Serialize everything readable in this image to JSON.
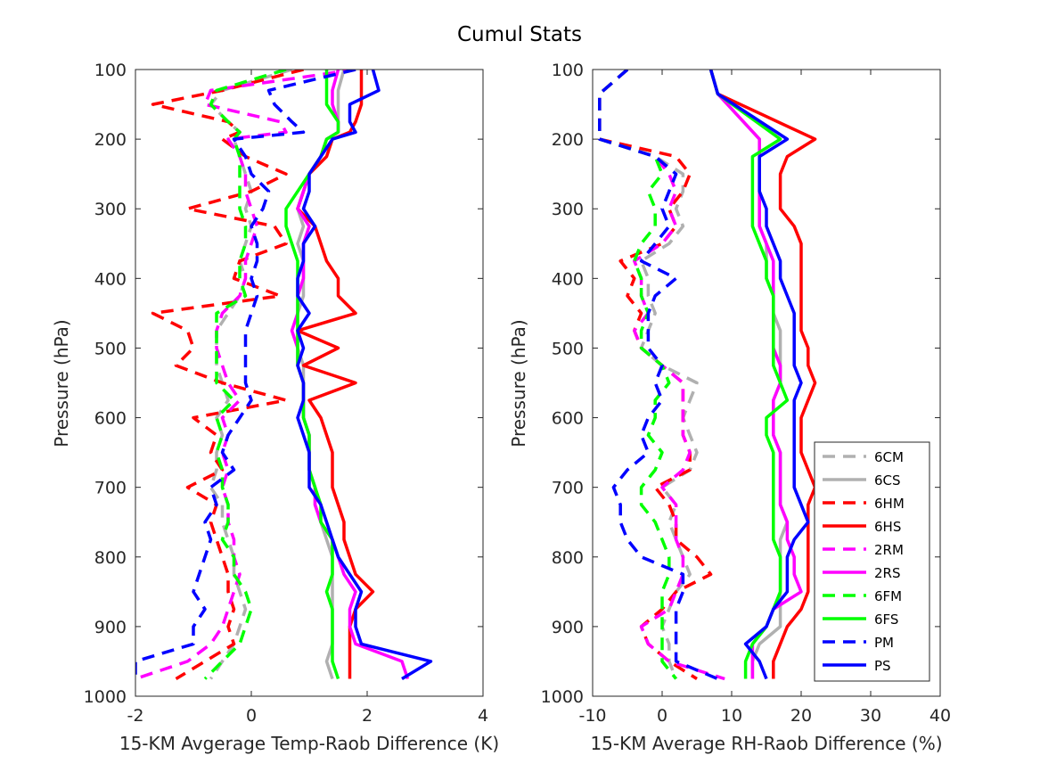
{
  "figure_title": "Cumul Stats",
  "colors": {
    "6C": "#b0b0b0",
    "6H": "#ff0000",
    "2R": "#ff00ff",
    "6F": "#00ff00",
    "P": "#0000ff"
  },
  "legend": {
    "placement": "bottom-right of right panel",
    "entries": [
      {
        "label": "6CM",
        "color": "#b0b0b0",
        "dashed": true
      },
      {
        "label": "6CS",
        "color": "#b0b0b0",
        "dashed": false
      },
      {
        "label": "6HM",
        "color": "#ff0000",
        "dashed": true
      },
      {
        "label": "6HS",
        "color": "#ff0000",
        "dashed": false
      },
      {
        "label": "2RM",
        "color": "#ff00ff",
        "dashed": true
      },
      {
        "label": "2RS",
        "color": "#ff00ff",
        "dashed": false
      },
      {
        "label": "6FM",
        "color": "#00ff00",
        "dashed": true
      },
      {
        "label": "6FS",
        "color": "#00ff00",
        "dashed": false
      },
      {
        "label": "PM",
        "color": "#0000ff",
        "dashed": true
      },
      {
        "label": "PS",
        "color": "#0000ff",
        "dashed": false
      }
    ]
  },
  "chart_data": [
    {
      "type": "line",
      "xlabel": "15-KM Avgerage Temp-Raob Difference (K)",
      "ylabel": "Pressure (hPa)",
      "xlim": [
        -2,
        4
      ],
      "ylim": [
        100,
        1000
      ],
      "y_reversed": true,
      "xticks": [
        "-2",
        "0",
        "2",
        "4"
      ],
      "yticks": [
        "100",
        "200",
        "300",
        "400",
        "500",
        "600",
        "700",
        "800",
        "900",
        "1000"
      ],
      "pressure": [
        100,
        130,
        150,
        175,
        190,
        200,
        225,
        250,
        275,
        300,
        325,
        350,
        375,
        400,
        425,
        450,
        475,
        500,
        525,
        550,
        575,
        600,
        625,
        650,
        675,
        700,
        725,
        750,
        775,
        800,
        825,
        850,
        875,
        900,
        925,
        950,
        975
      ],
      "series": [
        {
          "name": "6CM",
          "dashed": true,
          "color": "#b0b0b0",
          "values": [
            0.7,
            -0.5,
            -0.7,
            -0.4,
            -0.2,
            -0.3,
            -0.2,
            -0.1,
            0.0,
            -0.1,
            0.0,
            -0.1,
            -0.2,
            -0.1,
            -0.2,
            -0.4,
            -0.6,
            -0.6,
            -0.6,
            -0.5,
            -0.4,
            -0.6,
            -0.5,
            -0.6,
            -0.6,
            -0.7,
            -0.5,
            -0.5,
            -0.4,
            -0.3,
            -0.3,
            -0.2,
            -0.1,
            -0.2,
            -0.3,
            -0.5,
            -0.7
          ]
        },
        {
          "name": "6CS",
          "dashed": false,
          "color": "#b0b0b0",
          "values": [
            1.6,
            1.5,
            1.5,
            1.5,
            1.5,
            1.3,
            1.2,
            1.0,
            0.9,
            0.8,
            0.9,
            0.8,
            0.9,
            0.9,
            0.9,
            0.8,
            0.8,
            0.8,
            0.9,
            0.9,
            0.9,
            0.9,
            1.0,
            1.0,
            1.0,
            1.1,
            1.1,
            1.2,
            1.3,
            1.4,
            1.4,
            1.4,
            1.4,
            1.4,
            1.4,
            1.3,
            1.4
          ]
        },
        {
          "name": "6HM",
          "dashed": true,
          "color": "#ff0000",
          "values": [
            0.9,
            -0.5,
            -1.7,
            -0.4,
            -0.2,
            -0.5,
            -0.1,
            0.6,
            0.0,
            -1.1,
            0.4,
            0.6,
            -0.2,
            -0.3,
            0.5,
            -1.7,
            -1.1,
            -1.0,
            -1.3,
            -0.5,
            0.6,
            -1.0,
            -0.6,
            -0.7,
            -0.5,
            -1.1,
            -0.6,
            -0.7,
            -0.6,
            -0.5,
            -0.4,
            -0.4,
            -0.3,
            -0.4,
            -0.3,
            -0.8,
            -1.3
          ]
        },
        {
          "name": "6HS",
          "dashed": false,
          "color": "#ff0000",
          "values": [
            1.9,
            1.9,
            1.9,
            1.8,
            1.7,
            1.4,
            1.3,
            1.0,
            0.9,
            0.8,
            1.1,
            1.2,
            1.3,
            1.5,
            1.5,
            1.8,
            0.8,
            1.5,
            0.9,
            1.8,
            1.0,
            1.2,
            1.3,
            1.4,
            1.4,
            1.4,
            1.5,
            1.6,
            1.6,
            1.7,
            1.8,
            2.1,
            1.8,
            1.7,
            1.7,
            1.7,
            1.7
          ]
        },
        {
          "name": "2RM",
          "dashed": true,
          "color": "#ff00ff",
          "values": [
            1.8,
            -0.7,
            -0.8,
            0.5,
            0.6,
            -0.4,
            -0.2,
            -0.1,
            -0.1,
            0.0,
            0.1,
            0.0,
            -0.1,
            -0.1,
            -0.2,
            -0.5,
            -0.6,
            -0.6,
            -0.5,
            -0.4,
            -0.2,
            -0.5,
            -0.4,
            -0.5,
            -0.4,
            -0.5,
            -0.4,
            -0.4,
            -0.3,
            -0.3,
            -0.2,
            -0.3,
            -0.4,
            -0.5,
            -0.7,
            -1.1,
            -2.0
          ]
        },
        {
          "name": "2RS",
          "dashed": false,
          "color": "#ff00ff",
          "values": [
            1.5,
            1.4,
            1.4,
            1.5,
            1.5,
            1.3,
            1.2,
            1.0,
            0.9,
            0.8,
            1.0,
            0.9,
            0.9,
            0.9,
            0.8,
            0.8,
            0.7,
            0.8,
            0.8,
            0.9,
            0.9,
            0.9,
            1.0,
            1.0,
            1.0,
            1.1,
            1.1,
            1.2,
            1.4,
            1.5,
            1.6,
            1.8,
            1.7,
            1.7,
            1.8,
            2.6,
            2.7
          ]
        },
        {
          "name": "6FM",
          "dashed": true,
          "color": "#00ff00",
          "values": [
            0.6,
            -0.6,
            -0.7,
            -0.4,
            -0.2,
            -0.3,
            -0.2,
            -0.2,
            -0.2,
            -0.2,
            -0.1,
            -0.1,
            -0.2,
            -0.2,
            -0.1,
            -0.6,
            -0.6,
            -0.6,
            -0.6,
            -0.6,
            -0.3,
            -0.6,
            -0.5,
            -0.6,
            -0.5,
            -0.5,
            -0.4,
            -0.4,
            -0.5,
            -0.3,
            -0.3,
            -0.1,
            0.0,
            -0.1,
            -0.2,
            -0.5,
            -0.8
          ]
        },
        {
          "name": "6FS",
          "dashed": false,
          "color": "#00ff00",
          "values": [
            1.3,
            1.3,
            1.3,
            1.5,
            1.5,
            1.3,
            1.2,
            1.0,
            0.8,
            0.6,
            0.6,
            0.7,
            0.8,
            0.8,
            0.8,
            0.8,
            0.8,
            0.8,
            0.8,
            0.9,
            0.9,
            0.9,
            1.0,
            1.0,
            1.0,
            1.1,
            1.2,
            1.2,
            1.4,
            1.4,
            1.4,
            1.3,
            1.4,
            1.4,
            1.4,
            1.4,
            1.5
          ]
        },
        {
          "name": "PM",
          "dashed": true,
          "color": "#0000ff",
          "values": [
            1.8,
            0.3,
            0.4,
            0.7,
            0.9,
            -0.3,
            -0.1,
            0.0,
            0.3,
            0.2,
            0.0,
            0.1,
            0.1,
            0.0,
            0.1,
            0.0,
            -0.1,
            -0.1,
            -0.1,
            -0.1,
            0.0,
            -0.2,
            -0.4,
            -0.5,
            -0.3,
            -0.7,
            -0.6,
            -0.8,
            -0.7,
            -0.8,
            -0.9,
            -1.0,
            -0.8,
            -1.0,
            -1.0,
            -2.0,
            -2.0
          ]
        },
        {
          "name": "PS",
          "dashed": false,
          "color": "#0000ff",
          "values": [
            2.1,
            2.2,
            1.7,
            1.7,
            1.8,
            1.4,
            1.2,
            1.0,
            1.0,
            0.9,
            1.1,
            0.9,
            0.9,
            0.8,
            0.8,
            1.0,
            0.8,
            0.9,
            0.8,
            0.9,
            0.9,
            0.8,
            0.9,
            1.0,
            1.0,
            1.0,
            1.2,
            1.3,
            1.4,
            1.5,
            1.7,
            1.9,
            1.8,
            1.8,
            1.9,
            3.1,
            2.6
          ]
        }
      ]
    },
    {
      "type": "line",
      "xlabel": "15-KM Average RH-Raob Difference (%)",
      "ylabel": "Pressure (hPa)",
      "xlim": [
        -10,
        40
      ],
      "ylim": [
        100,
        1000
      ],
      "y_reversed": true,
      "xticks": [
        "-10",
        "0",
        "10",
        "20",
        "30",
        "40"
      ],
      "yticks": [
        "100",
        "200",
        "300",
        "400",
        "500",
        "600",
        "700",
        "800",
        "900",
        "1000"
      ],
      "pressure": [
        100,
        135,
        200,
        225,
        250,
        275,
        300,
        325,
        350,
        375,
        400,
        425,
        450,
        475,
        500,
        525,
        550,
        575,
        600,
        625,
        650,
        675,
        700,
        725,
        750,
        775,
        800,
        825,
        850,
        875,
        900,
        925,
        950,
        975
      ],
      "series": [
        {
          "name": "6CM",
          "dashed": true,
          "color": "#b0b0b0",
          "values": [
            -5,
            -9,
            -9,
            -1,
            3,
            3,
            2,
            3,
            1,
            -3,
            -2,
            -2,
            -1,
            -2,
            -3,
            0,
            5,
            4,
            3,
            4,
            5,
            4,
            0,
            2,
            1,
            2,
            3,
            4,
            2,
            1,
            0,
            1,
            1,
            2
          ]
        },
        {
          "name": "6CS",
          "dashed": false,
          "color": "#b0b0b0",
          "values": [
            7,
            8,
            14,
            14,
            14,
            14,
            14,
            14,
            15,
            15,
            15,
            16,
            16,
            17,
            17,
            17,
            17,
            16,
            16,
            16,
            17,
            17,
            17,
            17,
            18,
            17,
            17,
            17,
            17,
            17,
            17,
            14,
            13,
            13
          ]
        },
        {
          "name": "6HM",
          "dashed": true,
          "color": "#ff0000",
          "values": [
            -5,
            -9,
            -9,
            2,
            4,
            3,
            1,
            2,
            0,
            -6,
            -4,
            -5,
            -3,
            -4,
            -3,
            0,
            3,
            3,
            3,
            3,
            4,
            4,
            -1,
            1,
            2,
            2,
            5,
            7,
            2,
            0,
            -3,
            -2,
            1,
            5
          ]
        },
        {
          "name": "6HS",
          "dashed": false,
          "color": "#ff0000",
          "values": [
            7,
            8,
            22,
            18,
            17,
            17,
            17,
            19,
            20,
            20,
            20,
            20,
            20,
            20,
            21,
            21,
            22,
            21,
            20,
            20,
            20,
            21,
            22,
            21,
            21,
            21,
            21,
            21,
            21,
            20,
            18,
            17,
            16,
            16
          ]
        },
        {
          "name": "2RM",
          "dashed": true,
          "color": "#ff00ff",
          "values": [
            -5,
            -9,
            -9,
            -1,
            1,
            2,
            1,
            2,
            0,
            -4,
            -3,
            -3,
            -2,
            -4,
            -3,
            0,
            3,
            3,
            3,
            3,
            4,
            3,
            0,
            2,
            2,
            2,
            3,
            3,
            2,
            1,
            -3,
            -2,
            1,
            9
          ]
        },
        {
          "name": "2RS",
          "dashed": false,
          "color": "#ff00ff",
          "values": [
            7,
            8,
            14,
            14,
            14,
            14,
            14,
            14,
            15,
            16,
            16,
            16,
            16,
            16,
            16,
            17,
            17,
            16,
            16,
            16,
            17,
            17,
            17,
            17,
            18,
            18,
            19,
            19,
            20,
            16,
            15,
            13,
            13,
            13
          ]
        },
        {
          "name": "6FM",
          "dashed": true,
          "color": "#00ff00",
          "values": [
            -5,
            -9,
            -9,
            -1,
            0,
            -2,
            -1,
            -1,
            -3,
            -4,
            -3,
            -3,
            -2,
            -3,
            -3,
            0,
            1,
            -1,
            -1,
            -2,
            0,
            -1,
            -3,
            -3,
            -1,
            0,
            1,
            1,
            0,
            0,
            0,
            0,
            0,
            2
          ]
        },
        {
          "name": "6FS",
          "dashed": false,
          "color": "#00ff00",
          "values": [
            7,
            8,
            17,
            13,
            13,
            13,
            13,
            13,
            14,
            15,
            15,
            16,
            16,
            16,
            16,
            16,
            17,
            18,
            15,
            15,
            16,
            16,
            16,
            16,
            16,
            16,
            17,
            17,
            17,
            16,
            15,
            13,
            12,
            12
          ]
        },
        {
          "name": "PM",
          "dashed": true,
          "color": "#0000ff",
          "values": [
            -5,
            -9,
            -9,
            -1,
            2,
            1,
            0,
            1,
            -1,
            -3,
            2,
            -1,
            -2,
            -2,
            -2,
            0,
            -1,
            0,
            -2,
            -3,
            -2,
            -5,
            -7,
            -6,
            -6,
            -5,
            -3,
            3,
            3,
            2,
            2,
            2,
            2,
            8
          ]
        },
        {
          "name": "PS",
          "dashed": false,
          "color": "#0000ff",
          "values": [
            7,
            8,
            18,
            14,
            14,
            14,
            15,
            15,
            16,
            17,
            17,
            18,
            19,
            19,
            19,
            19,
            20,
            19,
            19,
            19,
            19,
            19,
            19,
            20,
            21,
            19,
            18,
            18,
            18,
            16,
            15,
            12,
            14,
            15
          ]
        }
      ]
    }
  ]
}
